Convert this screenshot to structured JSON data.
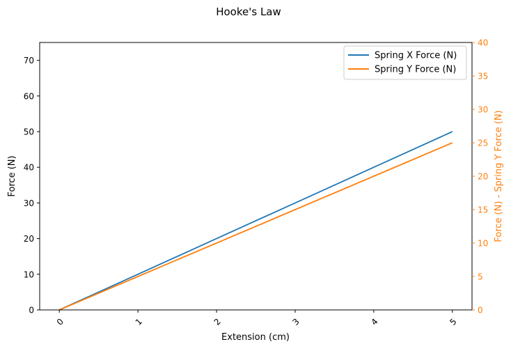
{
  "chart_data": {
    "type": "line",
    "title": "Hooke's Law",
    "xlabel": "Extension (cm)",
    "ylabel": "Force (N)",
    "y2label": "Force (N) - Spring Y Force (N)",
    "x": [
      0,
      1,
      2,
      3,
      4,
      5
    ],
    "xticks": [
      "0",
      "1",
      "2",
      "3",
      "4",
      "5"
    ],
    "xlim": [
      -0.25,
      5.25
    ],
    "ylim": [
      0,
      75
    ],
    "yticks": [
      "0",
      "10",
      "20",
      "30",
      "40",
      "50",
      "60",
      "70"
    ],
    "y2lim": [
      0,
      40
    ],
    "y2ticks": [
      "0",
      "5",
      "10",
      "15",
      "20",
      "25",
      "30",
      "35",
      "40"
    ],
    "legend_position": "top-right",
    "series": [
      {
        "name": "Spring X Force (N)",
        "axis": "left",
        "color": "#1f77b4",
        "values": [
          0,
          10,
          20,
          30,
          40,
          50
        ]
      },
      {
        "name": "Spring Y Force (N)",
        "axis": "right",
        "color": "#ff7f0e",
        "values": [
          0,
          5,
          10,
          15,
          20,
          25
        ]
      }
    ],
    "y2_color": "#ff7f0e"
  }
}
